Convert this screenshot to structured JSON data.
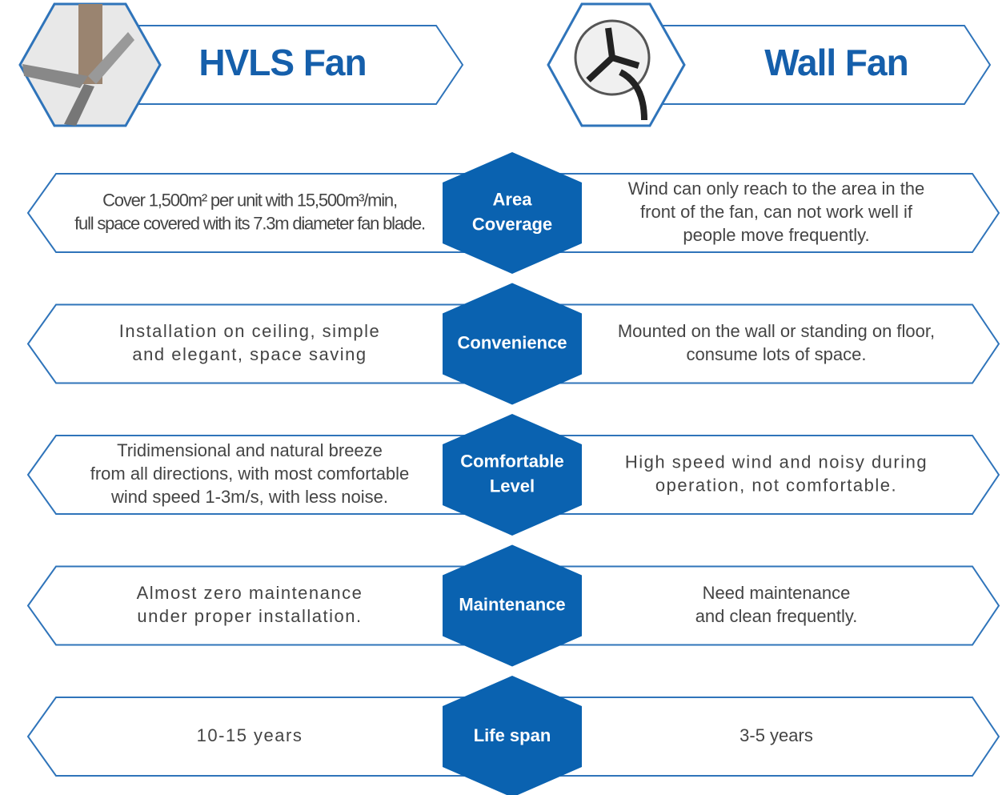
{
  "header": {
    "left_title": "HVLS Fan",
    "right_title": "Wall Fan"
  },
  "rows": [
    {
      "label": [
        "Area",
        "Coverage"
      ],
      "left": [
        "Cover 1,500m² per unit with 15,500m³/min,",
        "full space covered with its 7.3m diameter fan blade."
      ],
      "right": [
        "Wind can only reach to the area in the",
        "front of the fan, can not work well if",
        "people move frequently."
      ]
    },
    {
      "label": [
        "Convenience"
      ],
      "left": [
        "Installation on ceiling, simple",
        "and elegant, space saving"
      ],
      "right": [
        "Mounted on the wall or standing on floor,",
        "consume lots of space."
      ]
    },
    {
      "label": [
        "Comfortable",
        "Level"
      ],
      "left": [
        "Tridimensional and natural breeze",
        "from all directions, with most comfortable",
        "wind speed 1-3m/s, with less noise."
      ],
      "right": [
        "High speed wind and noisy during",
        "operation, not comfortable."
      ]
    },
    {
      "label": [
        "Maintenance"
      ],
      "left": [
        "Almost zero maintenance",
        "under proper installation."
      ],
      "right": [
        "Need maintenance",
        "and clean frequently."
      ]
    },
    {
      "label": [
        "Life span"
      ],
      "left": [
        "10-15 years"
      ],
      "right": [
        "3-5 years"
      ]
    }
  ]
}
